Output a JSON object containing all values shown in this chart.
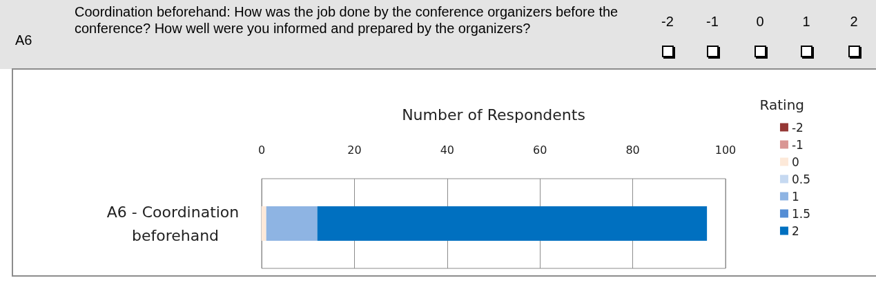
{
  "chart_data": {
    "type": "bar",
    "orientation": "horizontal",
    "stacked": true,
    "annotations": [
      "A6",
      "Coordination beforehand: How was the job done by the conference organizers before the conference? How well were you informed and prepared by the organizers?",
      "-2",
      "-1",
      "0",
      "1",
      "2"
    ],
    "xlabel": "Number of Respondents",
    "legend_title": "Rating",
    "legend": "right",
    "grid": "x",
    "categories": [
      "A6 - Coordination beforehand"
    ],
    "xlim": [
      0,
      100
    ],
    "xticks": [
      0,
      20,
      40,
      60,
      80,
      100
    ],
    "series": [
      {
        "name": "-2",
        "color": "#953735",
        "values": [
          0
        ]
      },
      {
        "name": "-1",
        "color": "#d99694",
        "values": [
          0
        ]
      },
      {
        "name": "0",
        "color": "#fde9d9",
        "values": [
          1
        ]
      },
      {
        "name": "0.5",
        "color": "#c6d9f1",
        "values": [
          0
        ]
      },
      {
        "name": "1",
        "color": "#8eb4e3",
        "values": [
          11
        ]
      },
      {
        "name": "1.5",
        "color": "#558ed5",
        "values": [
          0
        ]
      },
      {
        "name": "2",
        "color": "#0070c0",
        "values": [
          84
        ]
      }
    ]
  }
}
